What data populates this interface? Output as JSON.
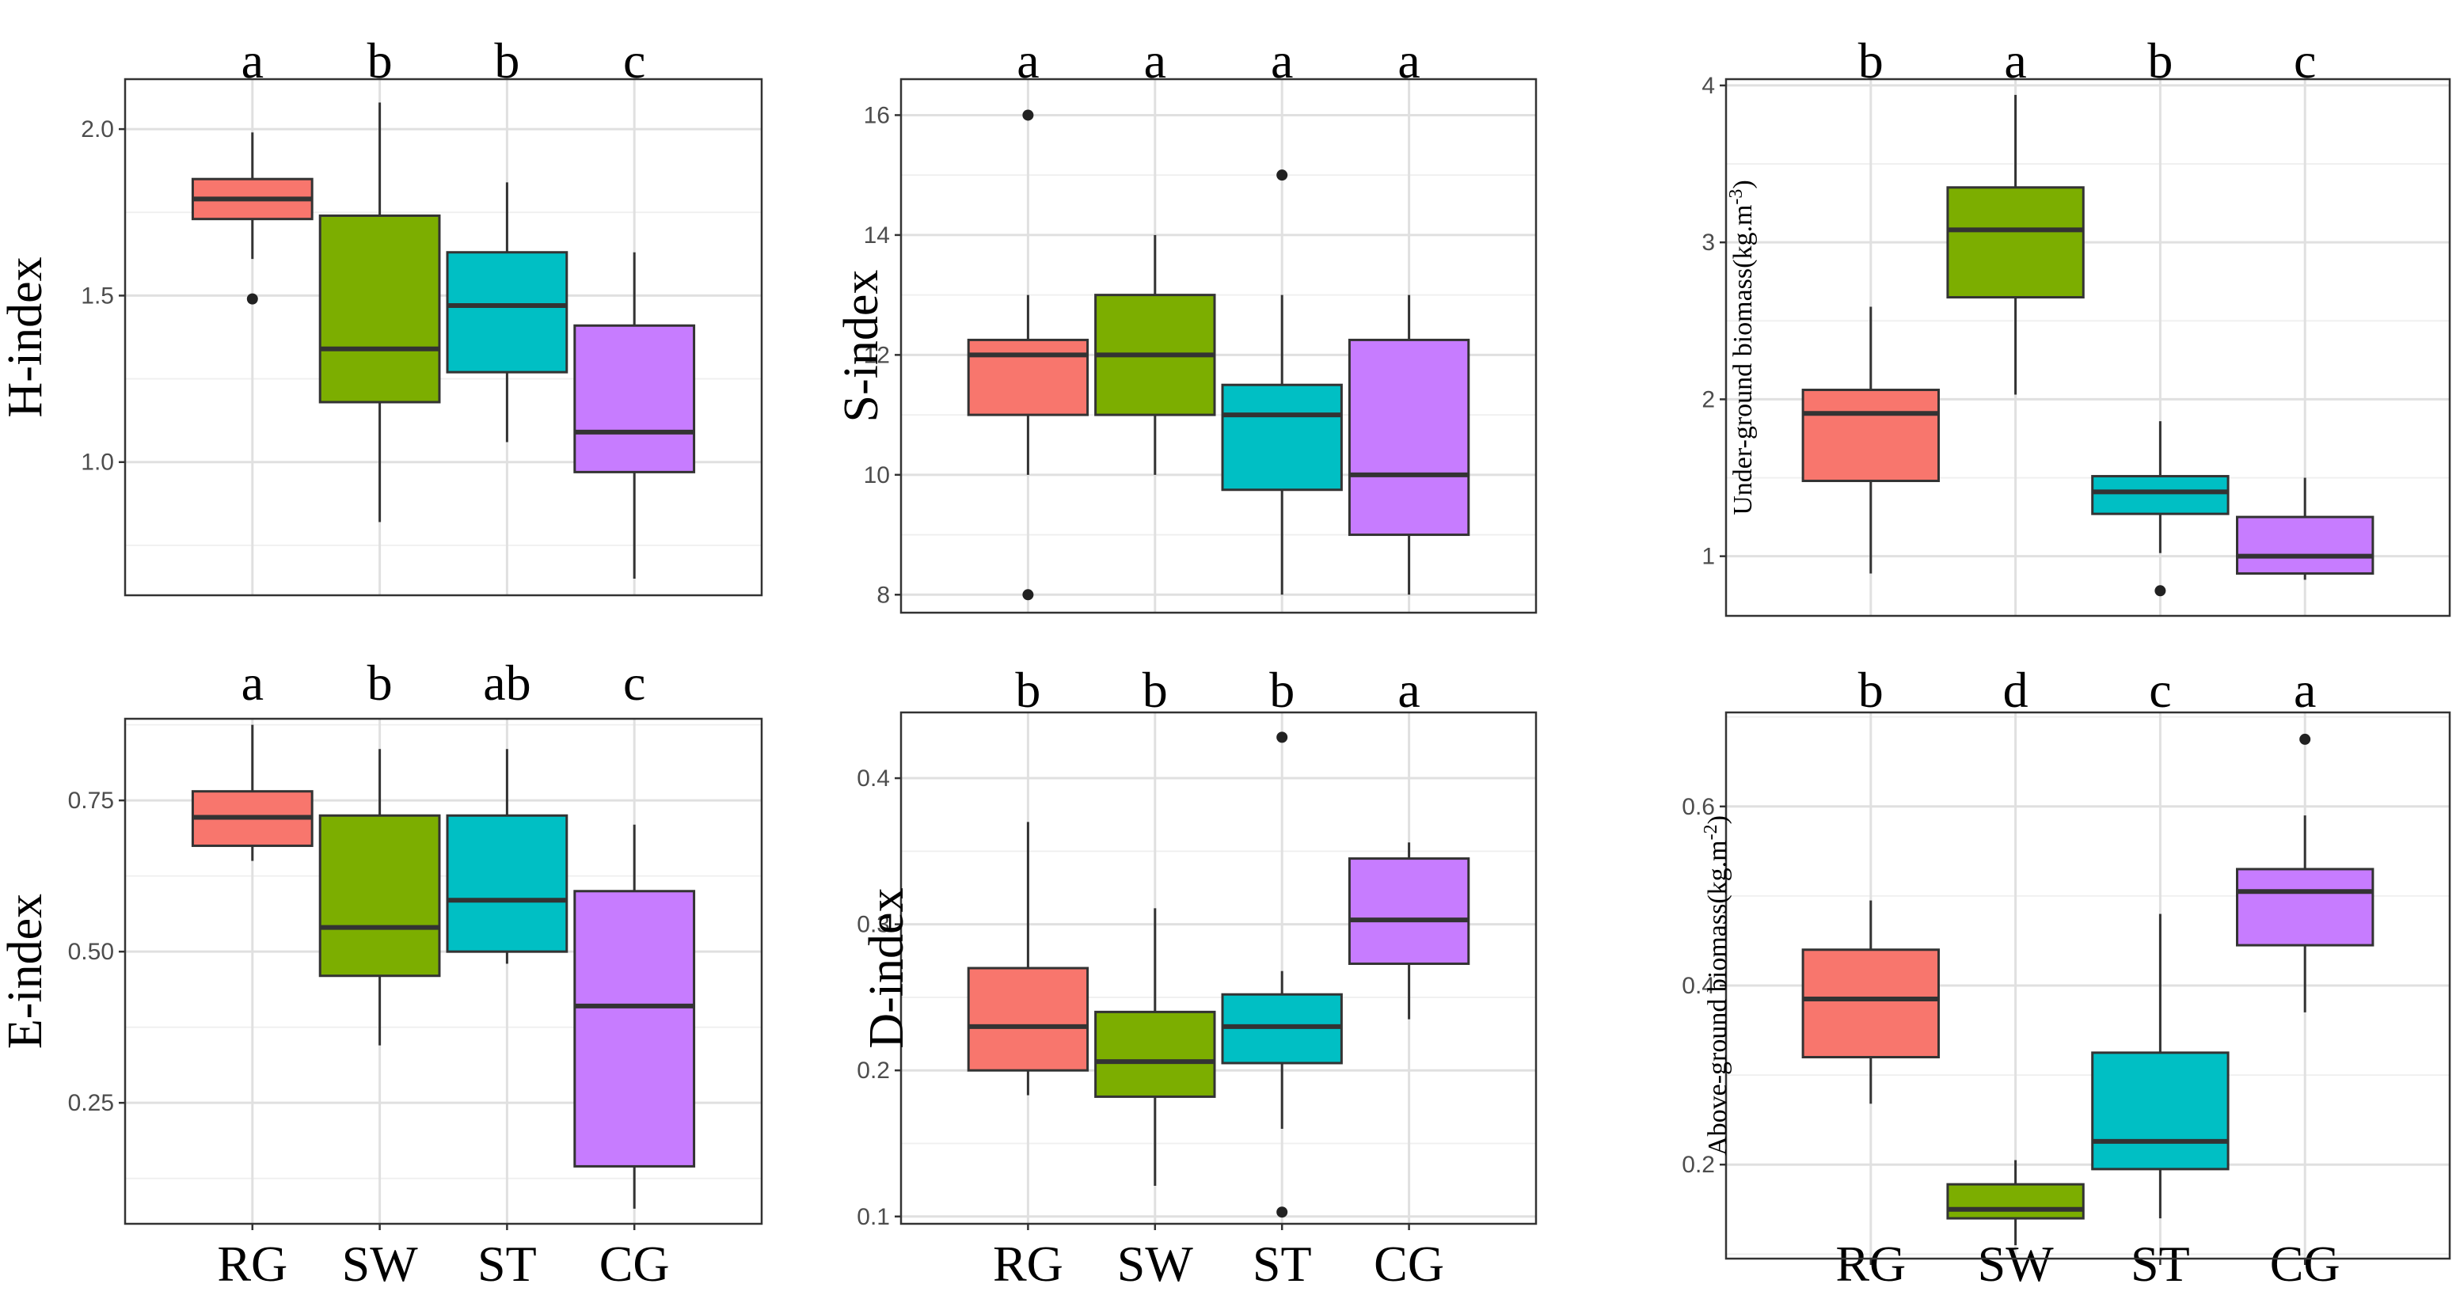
{
  "chart_data": [
    {
      "type": "boxplot",
      "ylabel": "H-index",
      "categories": [
        "RG",
        "SW",
        "ST",
        "CG"
      ],
      "show_xticks": false,
      "ylim": [
        0.6,
        2.15
      ],
      "yticks": [
        1.0,
        1.5,
        2.0
      ],
      "ytick_labels": [
        "1.0",
        "1.5",
        "2.0"
      ],
      "letters": [
        "a",
        "b",
        "b",
        "c"
      ],
      "boxes": [
        {
          "min": 1.61,
          "q1": 1.73,
          "median": 1.79,
          "q3": 1.85,
          "max": 1.99,
          "outliers": [
            1.49
          ]
        },
        {
          "min": 0.82,
          "q1": 1.18,
          "median": 1.34,
          "q3": 1.74,
          "max": 2.08,
          "outliers": []
        },
        {
          "min": 1.06,
          "q1": 1.27,
          "median": 1.47,
          "q3": 1.63,
          "max": 1.84,
          "outliers": []
        },
        {
          "min": 0.65,
          "q1": 0.97,
          "median": 1.09,
          "q3": 1.41,
          "max": 1.63,
          "outliers": []
        }
      ]
    },
    {
      "type": "boxplot",
      "ylabel": "S-index",
      "categories": [
        "RG",
        "SW",
        "ST",
        "CG"
      ],
      "show_xticks": false,
      "ylim": [
        7.7,
        16.6
      ],
      "yticks": [
        8,
        10,
        12,
        14,
        16
      ],
      "ytick_labels": [
        "8",
        "10",
        "12",
        "14",
        "16"
      ],
      "letters": [
        "a",
        "a",
        "a",
        "a"
      ],
      "boxes": [
        {
          "min": 10,
          "q1": 11,
          "median": 12,
          "q3": 12.25,
          "max": 13,
          "outliers": [
            16,
            8
          ]
        },
        {
          "min": 10,
          "q1": 11,
          "median": 12,
          "q3": 13,
          "max": 14,
          "outliers": []
        },
        {
          "min": 8,
          "q1": 9.75,
          "median": 11,
          "q3": 11.5,
          "max": 13,
          "outliers": [
            15
          ]
        },
        {
          "min": 8,
          "q1": 9,
          "median": 10,
          "q3": 12.25,
          "max": 13,
          "outliers": []
        }
      ]
    },
    {
      "type": "boxplot",
      "ylabel": "Under-ground biomass(kg.m",
      "ylabel_sup": "-3",
      "ylabel_end": ")",
      "categories": [
        "RG",
        "SW",
        "ST",
        "CG"
      ],
      "show_xticks": false,
      "ylim": [
        0.62,
        4.04
      ],
      "yticks": [
        1,
        2,
        3,
        4
      ],
      "ytick_labels": [
        "1",
        "2",
        "3",
        "4"
      ],
      "letters": [
        "b",
        "a",
        "b",
        "c"
      ],
      "boxes": [
        {
          "min": 0.89,
          "q1": 1.48,
          "median": 1.91,
          "q3": 2.06,
          "max": 2.59,
          "outliers": []
        },
        {
          "min": 2.03,
          "q1": 2.65,
          "median": 3.08,
          "q3": 3.35,
          "max": 3.94,
          "outliers": []
        },
        {
          "min": 1.02,
          "q1": 1.27,
          "median": 1.41,
          "q3": 1.51,
          "max": 1.86,
          "outliers": [
            0.78
          ]
        },
        {
          "min": 0.85,
          "q1": 0.89,
          "median": 1.0,
          "q3": 1.25,
          "max": 1.5,
          "outliers": []
        }
      ]
    },
    {
      "type": "boxplot",
      "ylabel": "E-index",
      "categories": [
        "RG",
        "SW",
        "ST",
        "CG"
      ],
      "show_xticks": true,
      "ylim": [
        0.05,
        0.885
      ],
      "yticks": [
        0.25,
        0.5,
        0.75
      ],
      "ytick_labels": [
        "0.25",
        "0.50",
        "0.75"
      ],
      "letters": [
        "a",
        "b",
        "ab",
        "c"
      ],
      "boxes": [
        {
          "min": 0.65,
          "q1": 0.675,
          "median": 0.722,
          "q3": 0.765,
          "max": 0.875,
          "outliers": []
        },
        {
          "min": 0.345,
          "q1": 0.46,
          "median": 0.54,
          "q3": 0.725,
          "max": 0.835,
          "outliers": []
        },
        {
          "min": 0.48,
          "q1": 0.5,
          "median": 0.585,
          "q3": 0.725,
          "max": 0.835,
          "outliers": []
        },
        {
          "min": 0.075,
          "q1": 0.145,
          "median": 0.41,
          "q3": 0.6,
          "max": 0.71,
          "outliers": []
        }
      ]
    },
    {
      "type": "boxplot",
      "ylabel": "D-index",
      "categories": [
        "RG",
        "SW",
        "ST",
        "CG"
      ],
      "show_xticks": true,
      "ylim": [
        0.095,
        0.445
      ],
      "yticks": [
        0.1,
        0.2,
        0.3,
        0.4
      ],
      "ytick_labels": [
        "0.1",
        "0.2",
        "0.3",
        "0.4"
      ],
      "letters": [
        "b",
        "b",
        "b",
        "a"
      ],
      "boxes": [
        {
          "min": 0.183,
          "q1": 0.2,
          "median": 0.23,
          "q3": 0.27,
          "max": 0.37,
          "outliers": []
        },
        {
          "min": 0.121,
          "q1": 0.182,
          "median": 0.206,
          "q3": 0.24,
          "max": 0.311,
          "outliers": []
        },
        {
          "min": 0.16,
          "q1": 0.205,
          "median": 0.23,
          "q3": 0.252,
          "max": 0.268,
          "outliers": [
            0.428,
            0.103
          ]
        },
        {
          "min": 0.235,
          "q1": 0.273,
          "median": 0.303,
          "q3": 0.345,
          "max": 0.356,
          "outliers": []
        }
      ]
    },
    {
      "type": "boxplot",
      "ylabel": "Above-ground biomass(kg.m",
      "ylabel_sup": "-2",
      "ylabel_end": ")",
      "categories": [
        "RG",
        "SW",
        "ST",
        "CG"
      ],
      "show_xticks": true,
      "ylim": [
        0.095,
        0.705
      ],
      "yticks": [
        0.2,
        0.4,
        0.6
      ],
      "ytick_labels": [
        "0.2",
        "0.4",
        "0.6"
      ],
      "letters": [
        "b",
        "d",
        "c",
        "a"
      ],
      "boxes": [
        {
          "min": 0.268,
          "q1": 0.32,
          "median": 0.385,
          "q3": 0.44,
          "max": 0.495,
          "outliers": []
        },
        {
          "min": 0.11,
          "q1": 0.14,
          "median": 0.15,
          "q3": 0.178,
          "max": 0.205,
          "outliers": []
        },
        {
          "min": 0.14,
          "q1": 0.195,
          "median": 0.226,
          "q3": 0.325,
          "max": 0.48,
          "outliers": []
        },
        {
          "min": 0.37,
          "q1": 0.445,
          "median": 0.505,
          "q3": 0.53,
          "max": 0.59,
          "outliers": [
            0.675
          ]
        }
      ]
    }
  ],
  "colors": {
    "RG": "#F8766D",
    "SW": "#7CAE00",
    "ST": "#00BFC4",
    "CG": "#C77CFF",
    "border": "#333333",
    "grid": "#e0e0e0"
  }
}
